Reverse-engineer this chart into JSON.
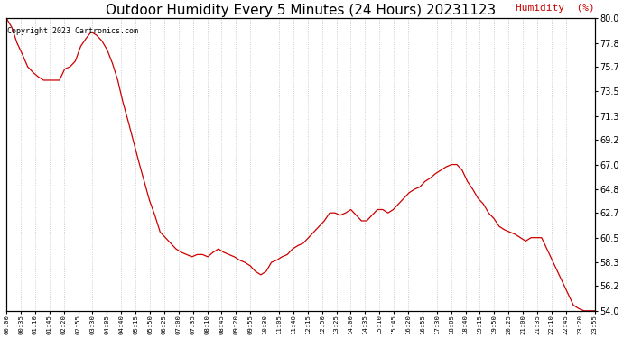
{
  "title": "Outdoor Humidity Every 5 Minutes (24 Hours) 20231123",
  "humidity_label": "Humidity  (%)",
  "copyright_text": "Copyright 2023 Cartronics.com",
  "line_color": "#cc0000",
  "background_color": "#ffffff",
  "grid_color": "#888888",
  "title_fontsize": 11,
  "ylabel_color": "#cc0000",
  "ylim": [
    54.0,
    80.0
  ],
  "yticks": [
    54.0,
    56.2,
    58.3,
    60.5,
    62.7,
    64.8,
    67.0,
    69.2,
    71.3,
    73.5,
    75.7,
    77.8,
    80.0
  ],
  "x_labels": [
    "00:00",
    "00:35",
    "01:10",
    "01:45",
    "02:20",
    "02:55",
    "03:30",
    "04:05",
    "04:40",
    "05:15",
    "05:50",
    "06:25",
    "07:00",
    "07:35",
    "08:10",
    "08:45",
    "09:20",
    "09:55",
    "10:30",
    "11:05",
    "11:40",
    "12:15",
    "12:50",
    "13:25",
    "14:00",
    "14:35",
    "15:10",
    "15:45",
    "16:20",
    "16:55",
    "17:30",
    "18:05",
    "18:40",
    "19:15",
    "19:50",
    "20:25",
    "21:00",
    "21:35",
    "22:10",
    "22:45",
    "23:20",
    "23:55"
  ],
  "humidity_values": [
    80.0,
    79.2,
    77.8,
    76.8,
    75.7,
    75.2,
    74.8,
    74.5,
    74.5,
    74.5,
    74.5,
    75.5,
    75.7,
    76.2,
    77.5,
    78.2,
    78.8,
    78.5,
    78.0,
    77.2,
    76.0,
    74.5,
    72.5,
    70.8,
    69.0,
    67.2,
    65.5,
    63.8,
    62.5,
    61.0,
    60.5,
    60.0,
    59.5,
    59.2,
    59.0,
    58.8,
    59.0,
    59.0,
    58.8,
    59.2,
    59.5,
    59.2,
    59.0,
    58.8,
    58.5,
    58.3,
    58.0,
    57.5,
    57.2,
    57.5,
    58.3,
    58.5,
    58.8,
    59.0,
    59.5,
    59.8,
    60.0,
    60.5,
    61.0,
    61.5,
    62.0,
    62.7,
    62.7,
    62.5,
    62.7,
    63.0,
    62.5,
    62.0,
    62.0,
    62.5,
    63.0,
    63.0,
    62.7,
    63.0,
    63.5,
    64.0,
    64.5,
    64.8,
    65.0,
    65.5,
    65.8,
    66.2,
    66.5,
    66.8,
    67.0,
    67.0,
    66.5,
    65.5,
    64.8,
    64.0,
    63.5,
    62.7,
    62.2,
    61.5,
    61.2,
    61.0,
    60.8,
    60.5,
    60.2,
    60.5,
    60.5,
    60.5,
    59.5,
    58.5,
    57.5,
    56.5,
    55.5,
    54.5,
    54.2,
    54.0,
    54.0,
    54.0
  ]
}
